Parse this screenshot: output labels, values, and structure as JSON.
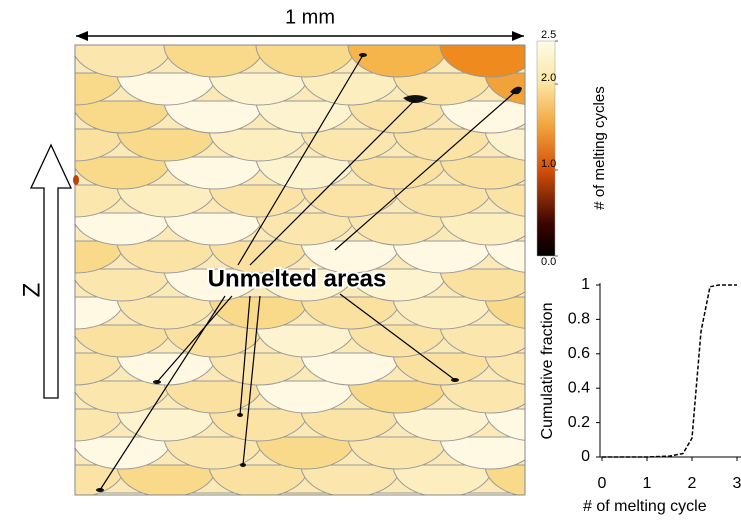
{
  "scale_bar": "1 mm",
  "build_direction": "Z",
  "annotation": "Unmelted areas",
  "colorbar": {
    "label": "# of melting cycles",
    "lim": [
      0,
      2.5
    ],
    "ticks": [
      {
        "value": 2.5,
        "label": "2.5"
      },
      {
        "value": 2,
        "label": "2.0"
      },
      {
        "value": 1,
        "label": "1.0"
      },
      {
        "value": 0,
        "label": "0.0"
      }
    ]
  },
  "chart_data": {
    "type": "line",
    "x_label": "# of melting cycle",
    "y_label": "Cumulative fraction",
    "x": [
      0,
      1,
      1.5,
      1.8,
      2.0,
      2.2,
      2.4,
      2.6,
      3
    ],
    "series": [
      {
        "color": "#000000",
        "dashed": true,
        "values": [
          0,
          0,
          0.005,
          0.02,
          0.11,
          0.73,
          0.99,
          1,
          1
        ]
      }
    ],
    "xlim": [
      0,
      3
    ],
    "ylim": [
      0,
      1
    ],
    "xticks": [
      0,
      1,
      2,
      3
    ],
    "yticks": [
      0,
      0.2,
      0.4,
      0.6,
      0.8,
      1
    ]
  }
}
